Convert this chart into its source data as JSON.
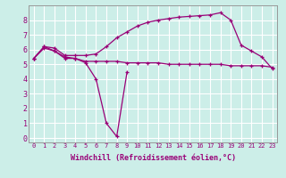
{
  "background_color": "#cceee8",
  "grid_color": "#ffffff",
  "line_color": "#990077",
  "marker": "+",
  "xlabel": "Windchill (Refroidissement éolien,°C)",
  "xlabel_fontsize": 6.0,
  "xlim": [
    -0.5,
    23.5
  ],
  "ylim": [
    -0.3,
    9.0
  ],
  "xticks": [
    0,
    1,
    2,
    3,
    4,
    5,
    6,
    7,
    8,
    9,
    10,
    11,
    12,
    13,
    14,
    15,
    16,
    17,
    18,
    19,
    20,
    21,
    22,
    23
  ],
  "yticks": [
    0,
    1,
    2,
    3,
    4,
    5,
    6,
    7,
    8
  ],
  "series": [
    {
      "x": [
        0,
        1,
        2,
        3,
        4,
        5,
        6,
        7,
        8,
        9
      ],
      "y": [
        5.4,
        6.2,
        5.9,
        5.5,
        5.4,
        5.1,
        4.0,
        1.0,
        0.1,
        4.5
      ]
    },
    {
      "x": [
        0,
        1,
        2,
        3,
        4,
        5,
        6,
        7,
        8,
        9,
        10,
        11,
        12,
        13,
        14,
        15,
        16,
        17,
        18,
        19,
        20,
        21,
        22,
        23
      ],
      "y": [
        5.4,
        6.1,
        5.9,
        5.4,
        5.4,
        5.2,
        5.2,
        5.2,
        5.2,
        5.1,
        5.1,
        5.1,
        5.1,
        5.0,
        5.0,
        5.0,
        5.0,
        5.0,
        5.0,
        4.9,
        4.9,
        4.9,
        4.9,
        4.8
      ]
    },
    {
      "x": [
        0,
        1,
        2,
        3,
        4,
        5,
        6,
        7,
        8,
        9,
        10,
        11,
        12,
        13,
        14,
        15,
        16,
        17,
        18,
        19,
        20,
        21,
        22,
        23
      ],
      "y": [
        5.4,
        6.2,
        6.1,
        5.6,
        5.6,
        5.6,
        5.7,
        6.2,
        6.8,
        7.2,
        7.6,
        7.85,
        8.0,
        8.1,
        8.2,
        8.25,
        8.3,
        8.35,
        8.5,
        8.0,
        6.3,
        5.9,
        5.5,
        4.7
      ]
    }
  ]
}
